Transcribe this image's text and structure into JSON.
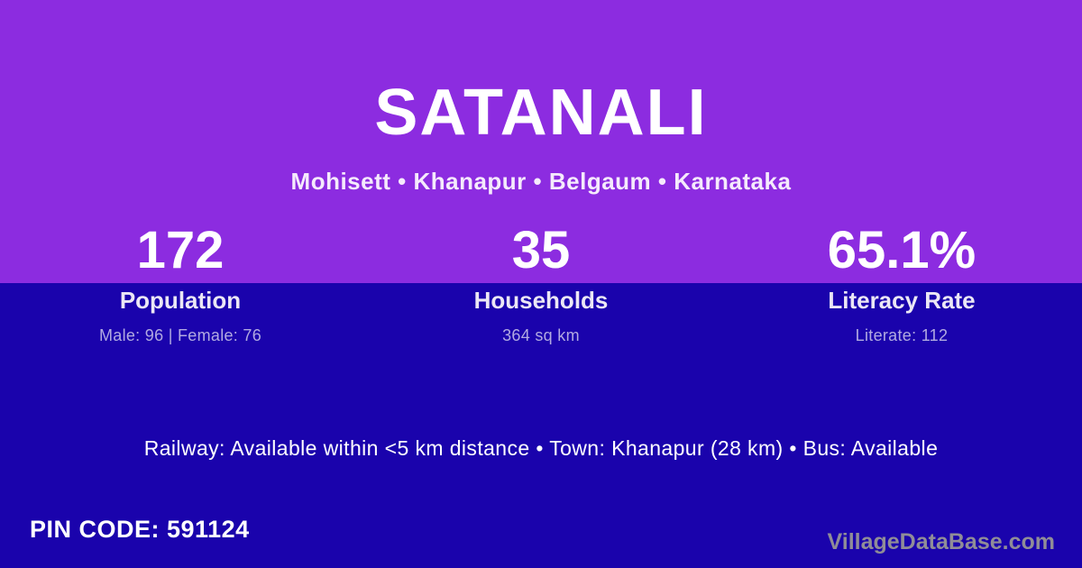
{
  "header": {
    "title": "SATANALI",
    "breadcrumb": "Mohisett • Khanapur • Belgaum • Karnataka"
  },
  "stats": [
    {
      "value": "172",
      "label": "Population",
      "detail": "Male: 96 | Female: 76"
    },
    {
      "value": "35",
      "label": "Households",
      "detail": "364 sq km"
    },
    {
      "value": "65.1%",
      "label": "Literacy Rate",
      "detail": "Literate: 112"
    }
  ],
  "transport": {
    "line": "Railway: Available within <5 km distance  •  Town: Khanapur (28 km)  •  Bus: Available"
  },
  "footer": {
    "pin_code": "PIN CODE: 591124",
    "watermark": "VillageDataBase.com"
  },
  "colors": {
    "top_bg": "#8C2CE0",
    "bottom_bg": "#1A03AC",
    "text_white": "#FFFFFF",
    "subtitle_color": "#F5EAFC",
    "label_color": "#EBE7F5",
    "detail_color": "#B2AAE1",
    "watermark_color": "#908D97"
  }
}
